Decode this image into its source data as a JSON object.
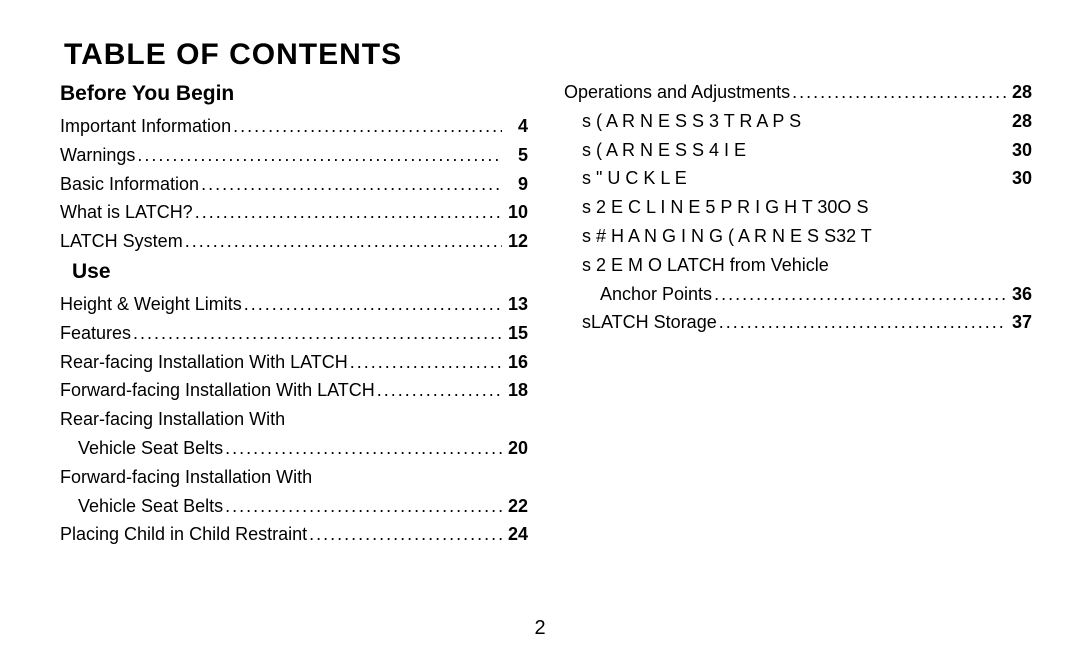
{
  "title": "TABLE OF CONTENTS",
  "page_number": "2",
  "left": {
    "sections": [
      {
        "heading": "Before You Begin",
        "indent": false,
        "items": [
          {
            "label": "Important  Information",
            "page": "4",
            "indent": 0,
            "leader": true
          },
          {
            "label": "Warnings",
            "page": "5",
            "indent": 0,
            "leader": true
          },
          {
            "label": "Basic  Information",
            "page": "9",
            "indent": 0,
            "leader": true
          },
          {
            "label": "What is LATCH?",
            "page": "10",
            "indent": 0,
            "leader": true
          },
          {
            "label": "LATCH System",
            "page": "12",
            "indent": 0,
            "leader": true
          }
        ]
      },
      {
        "heading": "Use",
        "indent": true,
        "items": [
          {
            "label": "Height & Weight Limits",
            "page": "13",
            "indent": 0,
            "leader": true
          },
          {
            "label": "Features",
            "page": "15",
            "indent": 0,
            "leader": true
          },
          {
            "label": "Rear-facing  Installation  With  LATCH",
            "page": "16",
            "indent": 0,
            "leader": true
          },
          {
            "label": "Forward-facing Installation With LATCH",
            "page": "18",
            "indent": 0,
            "leader": true
          },
          {
            "label": "Rear-facing Installation With",
            "page": "",
            "indent": 0,
            "leader": false
          },
          {
            "label": "Vehicle Seat Belts",
            "page": "20",
            "indent": 1,
            "leader": true
          },
          {
            "label": "Forward-facing Installation With",
            "page": "",
            "indent": 0,
            "leader": false
          },
          {
            "label": "Vehicle Seat Belts",
            "page": "22",
            "indent": 1,
            "leader": true
          },
          {
            "label": "Placing Child in Child Restraint",
            "page": "24",
            "indent": 0,
            "leader": true
          }
        ]
      }
    ]
  },
  "right": {
    "items": [
      {
        "label": "Operations and Adjustments",
        "page": "28",
        "indent": 0,
        "leader": true
      },
      {
        "label": "s    ( A R N E S S   3 T R A P S",
        "page": "28",
        "indent": 1,
        "leader": false,
        "garbled": false
      },
      {
        "label": "s     ( A R N E S S   4 I E",
        "page": "30",
        "indent": 1,
        "leader": false,
        "garbled": false
      },
      {
        "label": "s     \" U C K L E",
        "page": "30",
        "indent": 1,
        "leader": false,
        "garbled": false
      },
      {
        "label": "s    2 E C L I N E      5 P R I G H T 30O S",
        "page": "",
        "indent": 1,
        "leader": false,
        "garbled": false
      },
      {
        "label": "s    # H A N G I N G   ( A R N E S S32 T",
        "page": "",
        "indent": 1,
        "leader": false,
        "garbled": false
      },
      {
        "label": "s    2 E M O LATCH from Vehicle",
        "page": "",
        "indent": 1,
        "leader": false,
        "garbled": false
      },
      {
        "label": "Anchor Points ",
        "page": "36",
        "indent": 2,
        "leader": true
      },
      {
        "label": "sLATCH Storage ",
        "page": "37",
        "indent": 1,
        "leader": true
      }
    ]
  }
}
